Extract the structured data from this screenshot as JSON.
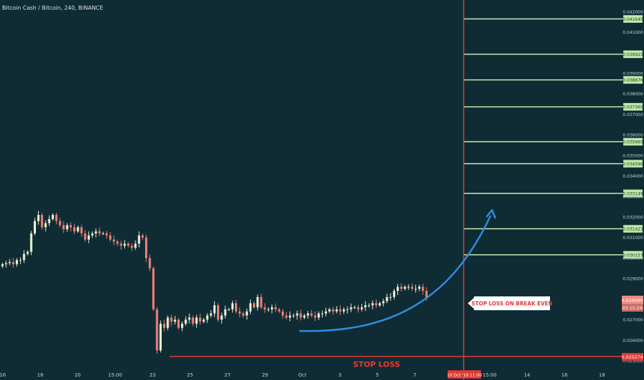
{
  "header": {
    "title": "Bitcoin Cash / Bitcoin, 240, BINANCE"
  },
  "colors": {
    "background": "#0f2c34",
    "candle_up": "#ecf0d4",
    "candle_down": "#ee7f77",
    "target_line": "#cdeeb8",
    "target_label_bg": "#bfe7a6",
    "stop_line": "#e53935",
    "arrow": "#2f8fe2",
    "axis_text": "#c7d2d6",
    "current_price_bg": "#ee8a82"
  },
  "annotations": {
    "stop_loss_text": "STOP LOSS",
    "callout_text": "STOP LOSS ON BREAK EVEN",
    "stop_price_label": "0.025274",
    "current_price_label": "0.028060",
    "countdown_label": "03:15:24",
    "vertical_line_time_label": "10 Oct '19   11:00"
  },
  "chart_data": {
    "type": "candlestick",
    "title": "Bitcoin Cash / Bitcoin, 240, BINANCE",
    "ylim": [
      0.0249,
      0.0424
    ],
    "y_ticks": [
      "0.042000",
      "0.041000",
      "0.039000",
      "0.038000",
      "0.037000",
      "0.036000",
      "0.035000",
      "0.034000",
      "0.033000",
      "0.032000",
      "0.031000",
      "0.030000",
      "0.029000",
      "0.028000",
      "0.027000",
      "0.026000",
      "0.025000"
    ],
    "x_ticks": [
      "16",
      "18",
      "20",
      "15:00",
      "23",
      "25",
      "27",
      "29",
      "Oct",
      "3",
      "5",
      "7",
      "9",
      "15:00",
      "14",
      "16",
      "18"
    ],
    "target_levels": [
      0.041645,
      0.039925,
      0.038676,
      0.037365,
      0.035665,
      0.034596,
      0.033149,
      0.031423,
      0.030157
    ],
    "target_labels": [
      "0.041645",
      "0.039925",
      "0.038676",
      "0.037365",
      "0.035665",
      "0.034596",
      "0.033149",
      "0.031423",
      "0.030157"
    ],
    "stop_loss_level": 0.025274,
    "current_price": 0.02806,
    "closes": [
      0.0297,
      0.02975,
      0.0298,
      0.0297,
      0.0299,
      0.0299,
      0.0302,
      0.0303,
      0.0312,
      0.0318,
      0.0321,
      0.0315,
      0.0317,
      0.0319,
      0.0321,
      0.0318,
      0.0316,
      0.0314,
      0.0316,
      0.0315,
      0.0313,
      0.0315,
      0.0312,
      0.0309,
      0.0311,
      0.0312,
      0.0313,
      0.0312,
      0.0312,
      0.0311,
      0.0309,
      0.0308,
      0.0307,
      0.0306,
      0.0307,
      0.0306,
      0.0305,
      0.0307,
      0.0311,
      0.031,
      0.03,
      0.0295,
      0.0275,
      0.0255,
      0.0268,
      0.0266,
      0.0271,
      0.0269,
      0.027,
      0.0266,
      0.0268,
      0.027,
      0.0271,
      0.0268,
      0.0271,
      0.0269,
      0.027,
      0.0272,
      0.0273,
      0.0277,
      0.027,
      0.0272,
      0.0275,
      0.0275,
      0.0278,
      0.0274,
      0.0273,
      0.0272,
      0.0274,
      0.0278,
      0.0276,
      0.0281,
      0.0276,
      0.0275,
      0.0275,
      0.0276,
      0.0275,
      0.0274,
      0.0272,
      0.0271,
      0.0272,
      0.0272,
      0.0273,
      0.0271,
      0.0272,
      0.0273,
      0.0272,
      0.0271,
      0.0273,
      0.0273,
      0.0274,
      0.0275,
      0.0274,
      0.0275,
      0.0274,
      0.0275,
      0.0275,
      0.0276,
      0.0276,
      0.0275,
      0.0276,
      0.0277,
      0.0277,
      0.0278,
      0.0277,
      0.0278,
      0.0279,
      0.0281,
      0.0281,
      0.0284,
      0.0286,
      0.0285,
      0.0286,
      0.0286,
      0.0285,
      0.0285,
      0.0286,
      0.0284,
      0.02806
    ]
  }
}
